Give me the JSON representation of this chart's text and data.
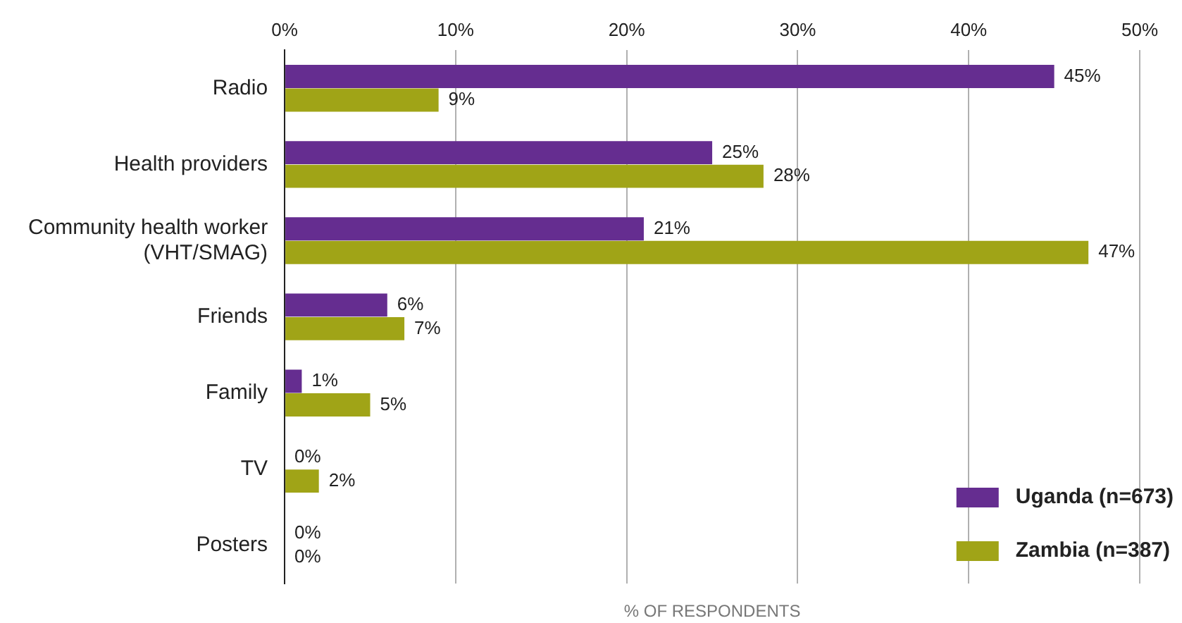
{
  "chart_data": {
    "type": "bar",
    "orientation": "horizontal",
    "xlabel": "% OF RESPONDENTS",
    "categories": [
      "Radio",
      "Health providers",
      "Community health worker (VHT/SMAG)",
      "Friends",
      "Family",
      "TV",
      "Posters"
    ],
    "series": [
      {
        "name": "Uganda (n=673)",
        "color": "#652d90",
        "values": [
          45,
          25,
          21,
          6,
          1,
          0,
          0
        ],
        "value_labels": [
          "45%",
          "25%",
          "21%",
          "6%",
          "1%",
          "0%",
          "0%"
        ]
      },
      {
        "name": "Zambia (n=387)",
        "color": "#a0a417",
        "values": [
          9,
          28,
          47,
          7,
          5,
          2,
          0
        ],
        "value_labels": [
          "9%",
          "28%",
          "47%",
          "7%",
          "5%",
          "2%",
          "0%"
        ]
      }
    ],
    "xlim": [
      0,
      50
    ],
    "xticks": [
      {
        "value": 0,
        "label": "0%"
      },
      {
        "value": 10,
        "label": "10%"
      },
      {
        "value": 20,
        "label": "20%"
      },
      {
        "value": 30,
        "label": "30%"
      },
      {
        "value": 40,
        "label": "40%"
      },
      {
        "value": 50,
        "label": "50%"
      }
    ],
    "grid": "x",
    "legend": "bottom right"
  }
}
